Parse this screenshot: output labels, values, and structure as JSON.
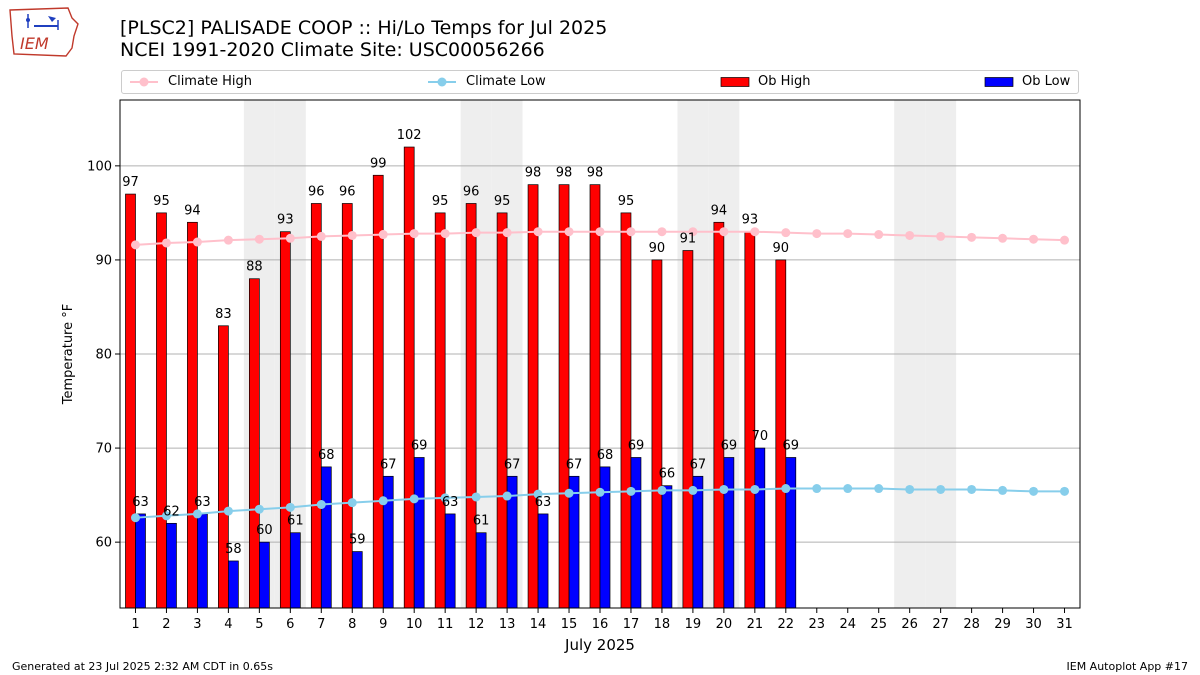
{
  "header": {
    "title_line1": "[PLSC2] PALISADE COOP :: Hi/Lo Temps for Jul 2025",
    "title_line2": "NCEI 1991-2020 Climate Site: USC00056266"
  },
  "logo": {
    "text": "IEM"
  },
  "footer": {
    "generated": "Generated at 23 Jul 2025 2:32 AM CDT in 0.65s",
    "app": "IEM Autoplot App #17"
  },
  "colors": {
    "ob_high": "#ff0000",
    "ob_low": "#0000ff",
    "climate_high": "#ffc0cb",
    "climate_low": "#87ceeb",
    "weekend_shade": "#eeeeee",
    "grid": "#b0b0b0"
  },
  "chart_data": {
    "type": "bar",
    "xlabel": "July 2025",
    "ylabel": "Temperature °F",
    "ylim": [
      53,
      107
    ],
    "yticks": [
      60,
      70,
      80,
      90,
      100
    ],
    "legend_placement": "top",
    "grid": true,
    "days": [
      1,
      2,
      3,
      4,
      5,
      6,
      7,
      8,
      9,
      10,
      11,
      12,
      13,
      14,
      15,
      16,
      17,
      18,
      19,
      20,
      21,
      22,
      23,
      24,
      25,
      26,
      27,
      28,
      29,
      30,
      31
    ],
    "shaded_weekend_days": [
      5,
      6,
      12,
      13,
      19,
      20,
      26,
      27
    ],
    "series": [
      {
        "name": "Ob High",
        "kind": "bar",
        "values": [
          97,
          95,
          94,
          83,
          88,
          93,
          96,
          96,
          99,
          102,
          95,
          96,
          95,
          98,
          98,
          98,
          95,
          90,
          91,
          94,
          93,
          90
        ]
      },
      {
        "name": "Ob Low",
        "kind": "bar",
        "values": [
          63,
          62,
          63,
          58,
          60,
          61,
          68,
          59,
          67,
          69,
          63,
          61,
          67,
          63,
          67,
          68,
          69,
          66,
          67,
          69,
          70,
          69
        ]
      },
      {
        "name": "Climate High",
        "kind": "line",
        "values": [
          91.6,
          91.8,
          91.9,
          92.1,
          92.2,
          92.3,
          92.5,
          92.6,
          92.7,
          92.8,
          92.8,
          92.9,
          92.9,
          93.0,
          93.0,
          93.0,
          93.0,
          93.0,
          93.0,
          93.0,
          93.0,
          92.9,
          92.8,
          92.8,
          92.7,
          92.6,
          92.5,
          92.4,
          92.3,
          92.2,
          92.1
        ]
      },
      {
        "name": "Climate Low",
        "kind": "line",
        "values": [
          62.6,
          62.8,
          63.0,
          63.3,
          63.5,
          63.7,
          64.0,
          64.2,
          64.4,
          64.6,
          64.7,
          64.8,
          64.9,
          65.1,
          65.2,
          65.3,
          65.4,
          65.5,
          65.5,
          65.6,
          65.6,
          65.7,
          65.7,
          65.7,
          65.7,
          65.6,
          65.6,
          65.6,
          65.5,
          65.4,
          65.4
        ]
      }
    ]
  }
}
